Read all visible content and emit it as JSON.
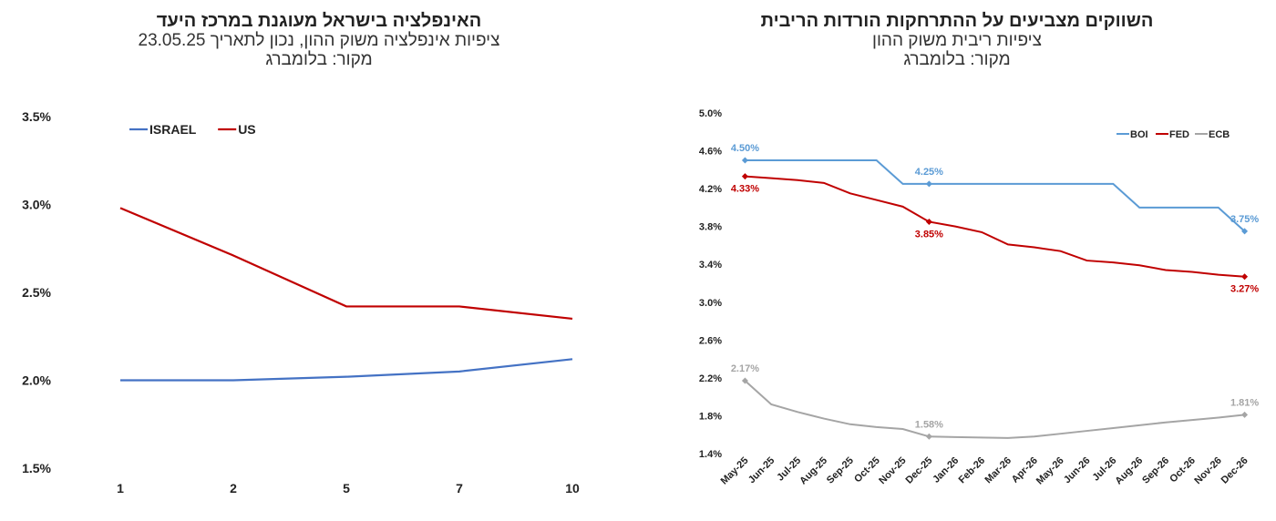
{
  "charts": [
    {
      "title": "האינפלציה בישראל מעוגנת במרכז היעד",
      "subtitle": "ציפיות אינפלציה משוק ההון, נכון לתאריך 23.05.25",
      "source": "מקור: בלומברג"
    },
    {
      "title": "השווקים מצביעים על ההתרחקות הורדות הריבית",
      "subtitle": "ציפיות ריבית משוק ההון",
      "source": "מקור: בלומברג"
    }
  ],
  "chart_data": [
    {
      "type": "line",
      "title": "האינפלציה בישראל מעוגנת במרכז היעד",
      "categories": [
        "1",
        "2",
        "5",
        "7",
        "10"
      ],
      "ylim": [
        1.5,
        3.5
      ],
      "yticks": [
        "1.5%",
        "2.0%",
        "2.5%",
        "3.0%",
        "3.5%"
      ],
      "ytick_values": [
        1.5,
        2.0,
        2.5,
        3.0,
        3.5
      ],
      "legend": "top-left",
      "grid": false,
      "series": [
        {
          "name": "ISRAEL",
          "color": "#4472C4",
          "values": [
            2.0,
            2.0,
            2.02,
            2.05,
            2.12
          ]
        },
        {
          "name": "US",
          "color": "#C00000",
          "values": [
            2.98,
            2.71,
            2.42,
            2.42,
            2.35
          ]
        }
      ]
    },
    {
      "type": "line",
      "title": "השווקים מצביעים על ההתרחקות הורדות הריבית",
      "categories": [
        "May-25",
        "Jun-25",
        "Jul-25",
        "Aug-25",
        "Sep-25",
        "Oct-25",
        "Nov-25",
        "Dec-25",
        "Jan-26",
        "Feb-26",
        "Mar-26",
        "Apr-26",
        "May-26",
        "Jun-26",
        "Jul-26",
        "Aug-26",
        "Sep-26",
        "Oct-26",
        "Nov-26",
        "Dec-26"
      ],
      "ylim": [
        1.4,
        5.0
      ],
      "yticks": [
        "1.4%",
        "1.8%",
        "2.2%",
        "2.6%",
        "3.0%",
        "3.4%",
        "3.8%",
        "4.2%",
        "4.6%",
        "5.0%"
      ],
      "ytick_values": [
        1.4,
        1.8,
        2.2,
        2.6,
        3.0,
        3.4,
        3.8,
        4.2,
        4.6,
        5.0
      ],
      "legend": "top-right",
      "grid": false,
      "series": [
        {
          "name": "BOI",
          "color": "#5B9BD5",
          "values": [
            4.5,
            4.5,
            4.5,
            4.5,
            4.5,
            4.5,
            4.25,
            4.25,
            4.25,
            4.25,
            4.25,
            4.25,
            4.25,
            4.25,
            4.25,
            4.0,
            4.0,
            4.0,
            4.0,
            3.75
          ],
          "labels": [
            {
              "index": 0,
              "text": "4.50%",
              "pos": "above"
            },
            {
              "index": 7,
              "text": "4.25%",
              "pos": "above"
            },
            {
              "index": 19,
              "text": "3.75%",
              "pos": "above"
            }
          ]
        },
        {
          "name": "FED",
          "color": "#C00000",
          "values": [
            4.33,
            4.31,
            4.29,
            4.26,
            4.15,
            4.08,
            4.01,
            3.85,
            3.8,
            3.74,
            3.61,
            3.58,
            3.54,
            3.44,
            3.42,
            3.39,
            3.34,
            3.32,
            3.29,
            3.27
          ],
          "labels": [
            {
              "index": 0,
              "text": "4.33%",
              "pos": "below"
            },
            {
              "index": 7,
              "text": "3.85%",
              "pos": "below"
            },
            {
              "index": 19,
              "text": "3.27%",
              "pos": "below"
            }
          ]
        },
        {
          "name": "ECB",
          "color": "#A5A5A5",
          "values": [
            2.17,
            1.92,
            1.84,
            1.77,
            1.71,
            1.68,
            1.66,
            1.58,
            1.575,
            1.57,
            1.565,
            1.58,
            1.61,
            1.64,
            1.67,
            1.7,
            1.73,
            1.755,
            1.78,
            1.81
          ],
          "labels": [
            {
              "index": 0,
              "text": "2.17%",
              "pos": "above"
            },
            {
              "index": 7,
              "text": "1.58%",
              "pos": "above"
            },
            {
              "index": 19,
              "text": "1.81%",
              "pos": "above"
            }
          ]
        }
      ]
    }
  ]
}
